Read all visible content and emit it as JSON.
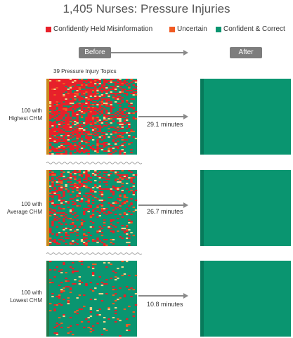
{
  "chart_data": {
    "type": "heatmap",
    "title": "1,405 Nurses: Pressure Injuries",
    "legend": [
      {
        "label": "Confidently Held Misinformation",
        "color": "#e8202a"
      },
      {
        "label": "Uncertain",
        "color": "#f15a22"
      },
      {
        "label": "Confident & Correct",
        "color": "#0a9570"
      }
    ],
    "columns": {
      "before": "Before",
      "after": "After"
    },
    "topics_label": "39 Pressure Injury Topics",
    "groups": [
      {
        "label_line1": "100 with",
        "label_line2": "Highest CHM",
        "minutes": "29.1 minutes",
        "misinformation_share": 0.62,
        "uncertain_share": 0.12
      },
      {
        "label_line1": "100 with",
        "label_line2": "Average CHM",
        "minutes": "26.7 minutes",
        "misinformation_share": 0.28,
        "uncertain_share": 0.1
      },
      {
        "label_line1": "100 with",
        "label_line2": "Lowest CHM",
        "minutes": "10.8 minutes",
        "misinformation_share": 0.06,
        "uncertain_share": 0.05
      }
    ]
  }
}
